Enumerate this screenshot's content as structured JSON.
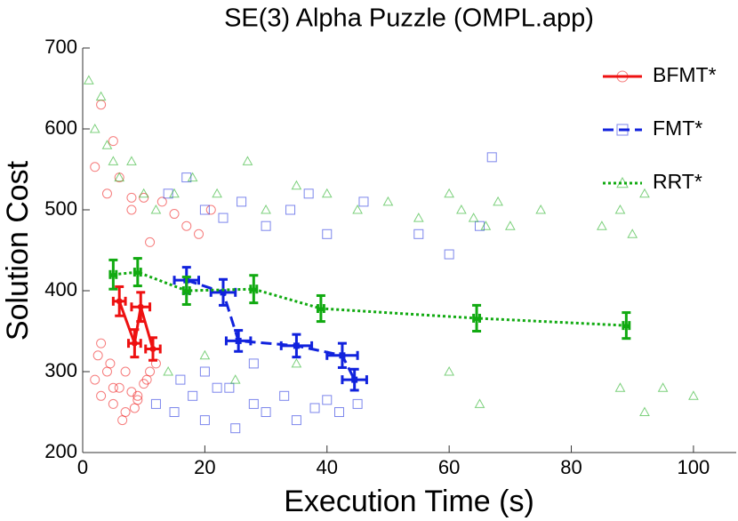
{
  "chart_data": {
    "type": "line",
    "title": "SE(3) Alpha Puzzle (OMPL.app)",
    "x_label": "Execution Time (s)",
    "y_label": "Solution Cost",
    "xlim": [
      0,
      107
    ],
    "xticks": [
      0,
      20,
      40,
      60,
      80,
      100
    ],
    "ylim": [
      200,
      700
    ],
    "yticks": [
      200,
      300,
      400,
      500,
      600,
      700
    ],
    "legend": "upper right",
    "series": [
      {
        "name": "BFMT*",
        "color": "#ee1111",
        "marker": "circle",
        "dash": "solid",
        "x": [
          6,
          8.5,
          9.5,
          11.5
        ],
        "values": [
          387,
          335,
          380,
          328
        ],
        "xerr": [
          1,
          1,
          1.5,
          1.2
        ],
        "yerr": [
          18,
          17,
          18,
          14
        ],
        "samples_x": [
          2,
          3,
          4,
          5,
          6,
          7,
          8,
          9,
          10,
          11,
          2.5,
          4.5,
          6.5,
          8.5,
          10.5,
          3,
          5,
          7,
          9,
          12,
          2,
          4,
          6,
          8,
          10,
          13,
          15,
          17,
          19,
          21,
          3,
          5,
          8,
          11
        ],
        "samples_y": [
          290,
          270,
          300,
          260,
          280,
          250,
          275,
          265,
          285,
          300,
          320,
          310,
          240,
          255,
          290,
          335,
          280,
          300,
          270,
          310,
          553,
          520,
          540,
          500,
          515,
          510,
          495,
          480,
          470,
          500,
          630,
          585,
          515,
          460
        ]
      },
      {
        "name": "FMT*",
        "color": "#1122dd",
        "marker": "square",
        "dash": "dashed",
        "x": [
          17,
          23,
          25.5,
          35,
          42.5,
          44.5
        ],
        "values": [
          413,
          398,
          338,
          332,
          320,
          290
        ],
        "xerr": [
          2,
          2,
          2,
          2.5,
          2.5,
          2
        ],
        "yerr": [
          16,
          16,
          13,
          14,
          15,
          13
        ],
        "samples_x": [
          12,
          15,
          18,
          20,
          22,
          25,
          28,
          30,
          33,
          35,
          38,
          40,
          42,
          45,
          14,
          17,
          20,
          23,
          26,
          30,
          34,
          37,
          40,
          46,
          16,
          20,
          24,
          28,
          55,
          60,
          65,
          67
        ],
        "samples_y": [
          260,
          250,
          270,
          240,
          280,
          230,
          260,
          250,
          270,
          240,
          255,
          265,
          250,
          260,
          520,
          540,
          500,
          490,
          510,
          480,
          500,
          520,
          470,
          510,
          290,
          300,
          280,
          310,
          470,
          445,
          480,
          565
        ]
      },
      {
        "name": "RRT*",
        "color": "#11aa11",
        "marker": "triangle",
        "dash": "dotted",
        "x": [
          5,
          9,
          17,
          28,
          39,
          64.5,
          89
        ],
        "values": [
          420,
          423,
          400,
          402,
          378,
          366,
          357
        ],
        "xerr": [
          0.5,
          0.5,
          0.5,
          0.5,
          0.5,
          0.5,
          0.5
        ],
        "yerr": [
          18,
          17,
          17,
          17,
          16,
          16,
          16
        ],
        "samples_x": [
          1,
          2,
          3,
          4,
          5,
          6,
          8,
          10,
          12,
          15,
          18,
          22,
          27,
          30,
          35,
          40,
          45,
          50,
          55,
          60,
          62,
          64,
          66,
          68,
          70,
          75,
          85,
          88,
          90,
          92,
          95,
          100,
          14,
          20,
          25,
          35,
          60,
          65,
          88,
          92
        ],
        "samples_y": [
          660,
          600,
          640,
          580,
          560,
          540,
          560,
          520,
          500,
          520,
          540,
          520,
          560,
          500,
          530,
          520,
          500,
          510,
          490,
          520,
          500,
          490,
          480,
          510,
          480,
          500,
          480,
          500,
          470,
          520,
          280,
          270,
          300,
          320,
          290,
          310,
          300,
          260,
          280,
          250
        ]
      }
    ]
  }
}
